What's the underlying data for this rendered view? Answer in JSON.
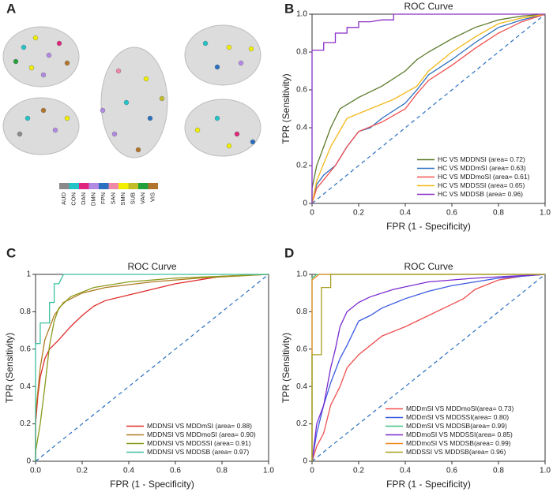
{
  "panels": [
    "A",
    "B",
    "C",
    "D"
  ],
  "brain_legend": {
    "labels": [
      "AUD",
      "CON",
      "DAN",
      "DMN",
      "FPN",
      "SAN",
      "SMN",
      "SUB",
      "VAN",
      "VIS"
    ],
    "colors": [
      "#8a8a8a",
      "#22c4c8",
      "#e0267c",
      "#b28ae4",
      "#2a6fc0",
      "#f088a8",
      "#f2f000",
      "#c2be2a",
      "#22a03a",
      "#b0742a"
    ]
  },
  "chart_data": [
    {
      "type": "line",
      "title": "ROC Curve",
      "x_label": "FPR (1 - Specificity)",
      "y_label": "TPR (Sensitivity)",
      "xlim": [
        0,
        1
      ],
      "ylim": [
        0,
        1
      ],
      "xticks": [
        0,
        0.2,
        0.4,
        0.6,
        0.8,
        {
          "value": 1,
          "label": "1.0"
        }
      ],
      "yticks": [
        0,
        0.2,
        0.4,
        0.6,
        0.8,
        {
          "value": 1,
          "label": "1.0"
        }
      ],
      "legend": "lower right",
      "series": [
        {
          "name": "HC VS MDDNSI (area= 0.72)",
          "color": "#5b7a2a",
          "x": [
            0,
            0,
            0.02,
            0.05,
            0.08,
            0.12,
            0.2,
            0.3,
            0.4,
            0.45,
            0.5,
            0.6,
            0.7,
            0.8,
            0.9,
            1
          ],
          "values": [
            0,
            0.08,
            0.2,
            0.3,
            0.4,
            0.5,
            0.56,
            0.62,
            0.7,
            0.76,
            0.8,
            0.87,
            0.93,
            0.97,
            0.99,
            1
          ]
        },
        {
          "name": "HC VS MDDmSI (area= 0.63)",
          "color": "#2a6fc0",
          "x": [
            0,
            0.02,
            0.05,
            0.1,
            0.15,
            0.2,
            0.25,
            0.3,
            0.4,
            0.45,
            0.5,
            0.6,
            0.7,
            0.8,
            0.9,
            1
          ],
          "values": [
            0,
            0.1,
            0.15,
            0.2,
            0.3,
            0.38,
            0.4,
            0.45,
            0.53,
            0.6,
            0.68,
            0.76,
            0.85,
            0.93,
            0.97,
            1
          ]
        },
        {
          "name": "HC VS MDDmoSI (area= 0.61)",
          "color": "#f05050",
          "x": [
            0,
            0.02,
            0.1,
            0.15,
            0.2,
            0.3,
            0.4,
            0.45,
            0.5,
            0.6,
            0.7,
            0.8,
            0.9,
            1
          ],
          "values": [
            0,
            0.08,
            0.2,
            0.3,
            0.38,
            0.43,
            0.5,
            0.58,
            0.65,
            0.73,
            0.82,
            0.9,
            0.96,
            1
          ]
        },
        {
          "name": "HC VS MDDSSI (area= 0.65)",
          "color": "#f2b81a",
          "x": [
            0,
            0.02,
            0.08,
            0.15,
            0.25,
            0.35,
            0.45,
            0.5,
            0.6,
            0.7,
            0.8,
            0.9,
            1
          ],
          "values": [
            0,
            0.12,
            0.3,
            0.45,
            0.5,
            0.55,
            0.62,
            0.7,
            0.8,
            0.88,
            0.95,
            0.98,
            1
          ]
        },
        {
          "name": "HC VS MDDSB (area= 0.96)",
          "color": "#8a2fc8",
          "x": [
            0,
            0,
            0.05,
            0.05,
            0.1,
            0.1,
            0.15,
            0.15,
            0.2,
            0.2,
            0.25,
            0.3,
            0.35,
            0.35,
            1
          ],
          "values": [
            0,
            0.81,
            0.81,
            0.85,
            0.85,
            0.9,
            0.9,
            0.93,
            0.93,
            0.96,
            0.96,
            0.97,
            0.97,
            1,
            1
          ]
        }
      ]
    },
    {
      "type": "line",
      "title": "ROC Curve",
      "x_label": "FPR (1 - Specificity)",
      "y_label": "TPR (Sensitivity)",
      "xlim": [
        0,
        1
      ],
      "ylim": [
        0,
        1
      ],
      "xticks": [
        {
          "value": 0,
          "label": "0.0"
        },
        0.2,
        0.4,
        0.6,
        0.8,
        {
          "value": 1,
          "label": "1.0"
        }
      ],
      "yticks": [
        0,
        0.2,
        0.4,
        0.6,
        0.8,
        1
      ],
      "legend": "lower right",
      "series": [
        {
          "name": "MDDNSI VS MDDmSI (area= 0.88)",
          "color": "#e02a2a",
          "x": [
            0,
            0,
            0.01,
            0.02,
            0.04,
            0.06,
            0.1,
            0.15,
            0.2,
            0.25,
            0.3,
            0.4,
            0.5,
            0.6,
            0.7,
            0.8,
            1
          ],
          "values": [
            0,
            0.2,
            0.35,
            0.45,
            0.55,
            0.6,
            0.65,
            0.72,
            0.78,
            0.83,
            0.86,
            0.89,
            0.92,
            0.95,
            0.97,
            0.99,
            1
          ]
        },
        {
          "name": "MDDNSI VS MDDmoSI (area= 0.90)",
          "color": "#b07a20",
          "x": [
            0,
            0,
            0.02,
            0.04,
            0.08,
            0.12,
            0.2,
            0.3,
            0.5,
            0.7,
            1
          ],
          "values": [
            0,
            0.25,
            0.5,
            0.65,
            0.78,
            0.85,
            0.9,
            0.93,
            0.96,
            0.98,
            1
          ]
        },
        {
          "name": "MDDNSI VS MDDSSI (area= 0.91)",
          "color": "#8a9a1a",
          "x": [
            0,
            0,
            0.02,
            0.04,
            0.06,
            0.08,
            0.1,
            0.15,
            0.25,
            0.4,
            0.6,
            0.8,
            1
          ],
          "values": [
            0,
            0.05,
            0.2,
            0.4,
            0.62,
            0.75,
            0.82,
            0.88,
            0.93,
            0.96,
            0.98,
            0.99,
            1
          ]
        },
        {
          "name": "MDDNSI VS MDDSB (area= 0.97)",
          "color": "#3cc0a0",
          "x": [
            0,
            0,
            0.02,
            0.02,
            0.06,
            0.06,
            0.08,
            0.08,
            0.1,
            0.12,
            1
          ],
          "values": [
            0,
            0.63,
            0.63,
            0.74,
            0.74,
            0.85,
            0.85,
            0.95,
            0.95,
            1,
            1
          ]
        }
      ]
    },
    {
      "type": "line",
      "title": "ROC Curve",
      "x_label": "FPR (1 - Specificity)",
      "y_label": "TPR (Sensitivity)",
      "xlim": [
        0,
        1
      ],
      "ylim": [
        0,
        1
      ],
      "xticks": [
        0,
        0.2,
        0.4,
        0.6,
        0.8,
        {
          "value": 1,
          "label": "1.0"
        }
      ],
      "yticks": [
        0,
        0.2,
        0.4,
        0.6,
        0.8,
        {
          "value": 1,
          "label": "1.0"
        }
      ],
      "legend": "lower right",
      "series": [
        {
          "name": "MDDmSI VS MDDmoSI(area= 0.73)",
          "color": "#f05050",
          "x": [
            0,
            0.02,
            0.05,
            0.08,
            0.12,
            0.15,
            0.2,
            0.25,
            0.3,
            0.4,
            0.5,
            0.6,
            0.65,
            0.7,
            0.8,
            0.9,
            1
          ],
          "values": [
            0,
            0.08,
            0.15,
            0.3,
            0.4,
            0.5,
            0.57,
            0.62,
            0.67,
            0.72,
            0.78,
            0.84,
            0.87,
            0.92,
            0.97,
            0.99,
            1
          ]
        },
        {
          "name": "MDDmSI VS MDDSSI(area= 0.80)",
          "color": "#3a5ae0",
          "x": [
            0,
            0.02,
            0.05,
            0.08,
            0.12,
            0.15,
            0.2,
            0.25,
            0.3,
            0.4,
            0.5,
            0.6,
            0.7,
            0.8,
            1
          ],
          "values": [
            0,
            0.15,
            0.3,
            0.42,
            0.55,
            0.62,
            0.75,
            0.78,
            0.82,
            0.87,
            0.91,
            0.94,
            0.96,
            0.98,
            1
          ]
        },
        {
          "name": "MDDmSI VS MDDSB(area= 0.99)",
          "color": "#3cc080",
          "x": [
            0,
            0,
            0.02,
            1
          ],
          "values": [
            0,
            0.98,
            1,
            1
          ]
        },
        {
          "name": "MDDmoSI VS MDDSSI(area= 0.85)",
          "color": "#7a2ad0",
          "x": [
            0,
            0.02,
            0.05,
            0.08,
            0.1,
            0.12,
            0.15,
            0.2,
            0.25,
            0.35,
            0.5,
            0.7,
            1
          ],
          "values": [
            0,
            0.2,
            0.3,
            0.5,
            0.6,
            0.72,
            0.8,
            0.85,
            0.88,
            0.92,
            0.96,
            0.98,
            1
          ]
        },
        {
          "name": "MDDmoSI VS MDDSB(area= 0.99)",
          "color": "#f08a20",
          "x": [
            0,
            0,
            0.03,
            1
          ],
          "values": [
            0,
            0.97,
            1,
            1
          ]
        },
        {
          "name": "MDDSSI VS MDDSB(area= 0.96)",
          "color": "#a8a020",
          "x": [
            0,
            0,
            0.04,
            0.04,
            0.08,
            0.08,
            1
          ],
          "values": [
            0,
            0.57,
            0.57,
            0.93,
            0.93,
            1,
            1
          ]
        }
      ]
    }
  ]
}
